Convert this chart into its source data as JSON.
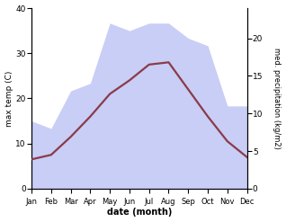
{
  "months": [
    "Jan",
    "Feb",
    "Mar",
    "Apr",
    "May",
    "Jun",
    "Jul",
    "Aug",
    "Sep",
    "Oct",
    "Nov",
    "Dec"
  ],
  "max_temp": [
    6.5,
    7.5,
    11.5,
    16.0,
    21.0,
    24.0,
    27.5,
    28.0,
    22.0,
    16.0,
    10.5,
    7.0
  ],
  "precipitation": [
    9,
    8,
    13,
    14,
    22,
    21,
    22,
    22,
    20,
    19,
    11,
    11
  ],
  "temp_color": "#8b3a4a",
  "precip_fill_color": "#c8cef5",
  "ylabel_left": "max temp (C)",
  "ylabel_right": "med. precipitation (kg/m2)",
  "xlabel": "date (month)",
  "ylim_left": [
    0,
    40
  ],
  "ylim_right": [
    0,
    24
  ],
  "yticks_left": [
    0,
    10,
    20,
    30,
    40
  ],
  "yticks_right": [
    0,
    5,
    10,
    15,
    20
  ],
  "background_color": "#ffffff",
  "line_width": 1.6
}
